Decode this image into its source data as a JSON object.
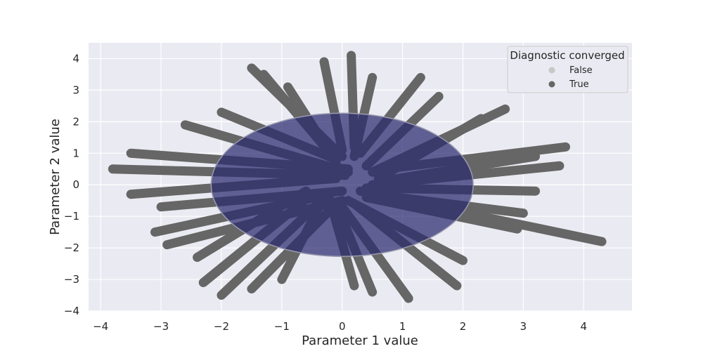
{
  "chart_data": {
    "type": "scatter",
    "title": "",
    "xlabel": "Parameter 1 value",
    "ylabel": "Parameter 2 value",
    "xlim": [
      -4.2,
      4.8
    ],
    "ylim": [
      -4.0,
      4.5
    ],
    "xticks": [
      -4,
      -3,
      -2,
      -1,
      0,
      1,
      2,
      3,
      4
    ],
    "yticks": [
      -4,
      -3,
      -2,
      -1,
      0,
      1,
      2,
      3,
      4
    ],
    "grid": true,
    "background": "#eaeaf2",
    "legend": {
      "title": "Diagnostic converged",
      "placement": "top-right",
      "entries": [
        {
          "label": "False",
          "color": "#c7c7c7"
        },
        {
          "label": "True",
          "color": "#666666"
        }
      ]
    },
    "ellipse": {
      "center": [
        0.0,
        0.0
      ],
      "radii": [
        2.17,
        2.27
      ],
      "fill": "#2a2a6e",
      "opacity": 0.72,
      "stroke": "#9a9ab0"
    },
    "series": [
      {
        "name": "True",
        "color": "#666666",
        "trails": [
          {
            "start": [
              0.05,
              0.3
            ],
            "end": [
              -3.8,
              0.5
            ]
          },
          {
            "start": [
              0.1,
              0.5
            ],
            "end": [
              -3.5,
              1.0
            ]
          },
          {
            "start": [
              -0.1,
              0.2
            ],
            "end": [
              -3.5,
              -0.3
            ]
          },
          {
            "start": [
              0.0,
              -0.2
            ],
            "end": [
              -3.0,
              -0.7
            ]
          },
          {
            "start": [
              -0.2,
              -0.3
            ],
            "end": [
              -3.1,
              -1.5
            ]
          },
          {
            "start": [
              0.0,
              -0.5
            ],
            "end": [
              -2.9,
              -1.9
            ]
          },
          {
            "start": [
              0.1,
              0.4
            ],
            "end": [
              -2.6,
              1.9
            ]
          },
          {
            "start": [
              -0.1,
              0.8
            ],
            "end": [
              -2.0,
              2.3
            ]
          },
          {
            "start": [
              0.0,
              0.9
            ],
            "end": [
              -1.5,
              3.7
            ]
          },
          {
            "start": [
              -0.2,
              1.0
            ],
            "end": [
              -1.3,
              3.5
            ]
          },
          {
            "start": [
              0.0,
              1.1
            ],
            "end": [
              -0.3,
              3.9
            ]
          },
          {
            "start": [
              -0.1,
              0.7
            ],
            "end": [
              -0.9,
              3.1
            ]
          },
          {
            "start": [
              0.2,
              1.2
            ],
            "end": [
              0.15,
              4.1
            ]
          },
          {
            "start": [
              0.2,
              0.9
            ],
            "end": [
              0.5,
              3.4
            ]
          },
          {
            "start": [
              0.3,
              1.0
            ],
            "end": [
              1.3,
              3.4
            ]
          },
          {
            "start": [
              0.4,
              0.6
            ],
            "end": [
              1.6,
              2.8
            ]
          },
          {
            "start": [
              0.5,
              0.4
            ],
            "end": [
              2.7,
              2.4
            ]
          },
          {
            "start": [
              0.6,
              0.2
            ],
            "end": [
              2.3,
              2.1
            ]
          },
          {
            "start": [
              0.7,
              0.5
            ],
            "end": [
              3.7,
              1.2
            ]
          },
          {
            "start": [
              0.6,
              0.1
            ],
            "end": [
              3.2,
              0.9
            ]
          },
          {
            "start": [
              0.5,
              0.0
            ],
            "end": [
              3.6,
              0.6
            ]
          },
          {
            "start": [
              0.4,
              -0.1
            ],
            "end": [
              3.2,
              -0.2
            ]
          },
          {
            "start": [
              0.5,
              -0.3
            ],
            "end": [
              3.0,
              -0.9
            ]
          },
          {
            "start": [
              0.3,
              -0.2
            ],
            "end": [
              4.3,
              -1.8
            ]
          },
          {
            "start": [
              0.4,
              -0.4
            ],
            "end": [
              2.9,
              -1.4
            ]
          },
          {
            "start": [
              0.2,
              -0.6
            ],
            "end": [
              1.9,
              -3.2
            ]
          },
          {
            "start": [
              0.1,
              -0.5
            ],
            "end": [
              2.0,
              -2.4
            ]
          },
          {
            "start": [
              0.0,
              -0.7
            ],
            "end": [
              1.1,
              -3.6
            ]
          },
          {
            "start": [
              -0.1,
              -0.6
            ],
            "end": [
              0.5,
              -3.4
            ]
          },
          {
            "start": [
              -0.2,
              -0.5
            ],
            "end": [
              0.2,
              -3.2
            ]
          },
          {
            "start": [
              -0.3,
              -0.4
            ],
            "end": [
              -1.0,
              -3.0
            ]
          },
          {
            "start": [
              -0.2,
              -0.8
            ],
            "end": [
              -1.5,
              -3.3
            ]
          },
          {
            "start": [
              -0.4,
              -0.6
            ],
            "end": [
              -2.0,
              -3.5
            ]
          },
          {
            "start": [
              -0.5,
              -0.3
            ],
            "end": [
              -2.3,
              -3.1
            ]
          },
          {
            "start": [
              -0.6,
              -0.2
            ],
            "end": [
              -2.4,
              -2.3
            ]
          }
        ]
      }
    ]
  }
}
